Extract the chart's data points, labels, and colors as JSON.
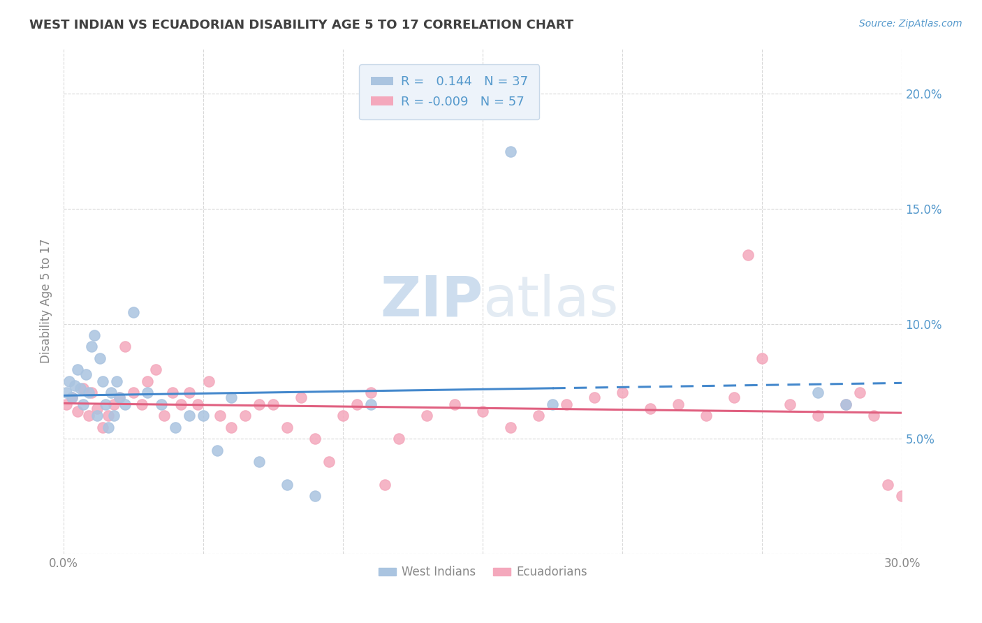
{
  "title": "WEST INDIAN VS ECUADORIAN DISABILITY AGE 5 TO 17 CORRELATION CHART",
  "source_text": "Source: ZipAtlas.com",
  "ylabel": "Disability Age 5 to 17",
  "xlim": [
    0.0,
    0.3
  ],
  "ylim": [
    0.0,
    0.22
  ],
  "xticks": [
    0.0,
    0.05,
    0.1,
    0.15,
    0.2,
    0.25,
    0.3
  ],
  "xticklabels": [
    "0.0%",
    "",
    "",
    "",
    "",
    "",
    "30.0%"
  ],
  "yticks": [
    0.0,
    0.05,
    0.1,
    0.15,
    0.2
  ],
  "yticklabels": [
    "",
    "",
    "",
    "",
    ""
  ],
  "yticks_right": [
    0.05,
    0.1,
    0.15,
    0.2
  ],
  "yticklabels_right": [
    "5.0%",
    "10.0%",
    "15.0%",
    "20.0%"
  ],
  "west_indian_color": "#aac4e0",
  "ecuadorian_color": "#f4a8bc",
  "west_indian_R": 0.144,
  "west_indian_N": 37,
  "ecuadorian_R": -0.009,
  "ecuadorian_N": 57,
  "wi_x": [
    0.001,
    0.002,
    0.003,
    0.004,
    0.005,
    0.006,
    0.007,
    0.008,
    0.009,
    0.01,
    0.011,
    0.012,
    0.013,
    0.014,
    0.015,
    0.016,
    0.017,
    0.018,
    0.019,
    0.02,
    0.022,
    0.025,
    0.03,
    0.035,
    0.04,
    0.045,
    0.05,
    0.055,
    0.06,
    0.07,
    0.08,
    0.09,
    0.11,
    0.16,
    0.175,
    0.27,
    0.28
  ],
  "wi_y": [
    0.07,
    0.075,
    0.068,
    0.073,
    0.08,
    0.072,
    0.065,
    0.078,
    0.07,
    0.09,
    0.095,
    0.06,
    0.085,
    0.075,
    0.065,
    0.055,
    0.07,
    0.06,
    0.075,
    0.068,
    0.065,
    0.105,
    0.07,
    0.065,
    0.055,
    0.06,
    0.06,
    0.045,
    0.068,
    0.04,
    0.03,
    0.025,
    0.065,
    0.175,
    0.065,
    0.07,
    0.065
  ],
  "ec_x": [
    0.001,
    0.003,
    0.005,
    0.007,
    0.009,
    0.01,
    0.012,
    0.014,
    0.016,
    0.018,
    0.02,
    0.022,
    0.025,
    0.028,
    0.03,
    0.033,
    0.036,
    0.039,
    0.042,
    0.045,
    0.048,
    0.052,
    0.056,
    0.06,
    0.065,
    0.07,
    0.075,
    0.08,
    0.085,
    0.09,
    0.095,
    0.1,
    0.105,
    0.11,
    0.115,
    0.12,
    0.13,
    0.14,
    0.15,
    0.16,
    0.17,
    0.18,
    0.19,
    0.2,
    0.21,
    0.22,
    0.23,
    0.24,
    0.25,
    0.26,
    0.27,
    0.28,
    0.285,
    0.29,
    0.295,
    0.3,
    0.245
  ],
  "ec_y": [
    0.065,
    0.068,
    0.062,
    0.072,
    0.06,
    0.07,
    0.063,
    0.055,
    0.06,
    0.065,
    0.068,
    0.09,
    0.07,
    0.065,
    0.075,
    0.08,
    0.06,
    0.07,
    0.065,
    0.07,
    0.065,
    0.075,
    0.06,
    0.055,
    0.06,
    0.065,
    0.065,
    0.055,
    0.068,
    0.05,
    0.04,
    0.06,
    0.065,
    0.07,
    0.03,
    0.05,
    0.06,
    0.065,
    0.062,
    0.055,
    0.06,
    0.065,
    0.068,
    0.07,
    0.063,
    0.065,
    0.06,
    0.068,
    0.085,
    0.065,
    0.06,
    0.065,
    0.07,
    0.06,
    0.03,
    0.025,
    0.13
  ],
  "background_color": "#ffffff",
  "grid_color": "#d8d8d8",
  "title_color": "#404040",
  "axis_label_color": "#888888",
  "tick_color": "#888888",
  "right_tick_color": "#5599cc",
  "watermark_color": "#dce8f0",
  "legend_box_color": "#edf3fa",
  "legend_edge_color": "#c8d8e8",
  "wi_line_color": "#4488cc",
  "ec_line_color": "#e06080"
}
